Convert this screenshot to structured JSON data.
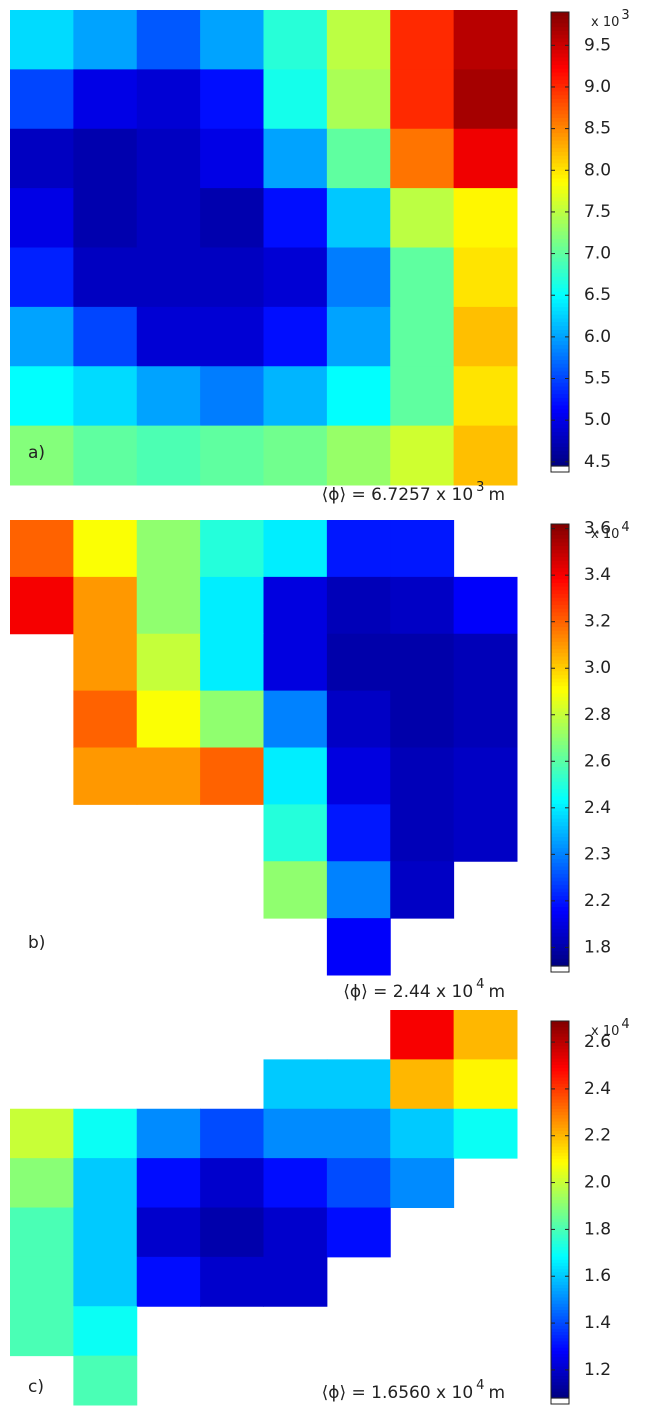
{
  "chart_data": [
    {
      "type": "heatmap",
      "colormap": "jet",
      "label": "a)",
      "z": [
        [
          6.3,
          6.0,
          5.6,
          6.0,
          6.7,
          7.5,
          9.0,
          9.6
        ],
        [
          5.5,
          5.0,
          4.9,
          5.2,
          6.6,
          7.4,
          9.0,
          9.7
        ],
        [
          4.8,
          4.7,
          4.8,
          5.0,
          6.0,
          7.0,
          8.6,
          9.3
        ],
        [
          5.0,
          4.7,
          4.8,
          4.7,
          5.2,
          6.2,
          7.5,
          7.9
        ],
        [
          5.3,
          4.8,
          4.8,
          4.8,
          4.9,
          5.8,
          7.0,
          8.0
        ],
        [
          6.0,
          5.5,
          4.9,
          4.9,
          5.2,
          6.0,
          7.0,
          8.2
        ],
        [
          6.5,
          6.3,
          6.0,
          5.8,
          6.1,
          6.5,
          7.0,
          8.0
        ],
        [
          7.2,
          7.0,
          6.9,
          7.0,
          7.1,
          7.3,
          7.6,
          8.2
        ]
      ],
      "zlim": [
        4.45,
        9.9
      ],
      "zticks": [
        4.5,
        {
          "value": 5,
          "label": "5.0"
        },
        5.5,
        {
          "value": 6,
          "label": "6.0"
        },
        6.5,
        {
          "value": 7,
          "label": "7.0"
        },
        7.5,
        {
          "value": 8,
          "label": "8.0"
        },
        8.5,
        {
          "value": 9,
          "label": "9.0"
        },
        9.5
      ],
      "colorbar_exponent": {
        "base": "x 10",
        "power": "3"
      },
      "annotation": {
        "text": "⟨ϕ⟩ = 6.7257 x 10",
        "power": "3",
        "unit": "m"
      }
    },
    {
      "type": "heatmap",
      "colormap": "jet",
      "label": "b)",
      "z": [
        [
          3.2,
          2.9,
          2.7,
          2.5,
          2.4,
          2.2,
          2.2,
          null
        ],
        [
          3.4,
          3.1,
          2.7,
          2.4,
          2.0,
          1.85,
          1.9,
          2.1
        ],
        [
          null,
          3.1,
          2.8,
          2.4,
          2.0,
          1.8,
          1.8,
          1.85
        ],
        [
          null,
          3.2,
          2.9,
          2.7,
          2.3,
          1.9,
          1.8,
          1.85
        ],
        [
          null,
          3.1,
          3.1,
          3.2,
          2.4,
          2.0,
          1.85,
          1.9
        ],
        [
          null,
          null,
          null,
          null,
          2.5,
          2.2,
          1.85,
          1.9
        ],
        [
          null,
          null,
          null,
          null,
          2.7,
          2.3,
          1.9,
          null
        ],
        [
          null,
          null,
          null,
          null,
          null,
          2.1,
          null,
          null
        ]
      ],
      "zlim": [
        1.64,
        3.62
      ],
      "zticks": [
        1.8,
        2.2,
        2.3,
        2.4,
        2.6,
        2.8,
        {
          "value": 3,
          "label": "3.0"
        },
        3.2,
        3.4,
        3.6
      ],
      "colorbar_exponent": {
        "base": "x 10",
        "power": "4"
      },
      "annotation": {
        "text": "⟨ϕ⟩ = 2.44 x 10",
        "power": "4",
        "unit": "m"
      }
    },
    {
      "type": "heatmap",
      "colormap": "jet",
      "label": "c)",
      "z": [
        [
          null,
          null,
          null,
          null,
          null,
          null,
          2.5,
          2.2
        ],
        [
          null,
          null,
          null,
          null,
          1.6,
          1.6,
          2.2,
          2.1
        ],
        [
          2.0,
          1.7,
          1.5,
          1.4,
          1.5,
          1.5,
          1.6,
          1.7
        ],
        [
          1.9,
          1.6,
          1.3,
          1.2,
          1.3,
          1.4,
          1.5,
          null
        ],
        [
          1.8,
          1.6,
          1.2,
          1.15,
          1.2,
          1.3,
          null,
          null
        ],
        [
          1.8,
          1.6,
          1.3,
          1.2,
          1.2,
          null,
          null,
          null
        ],
        [
          1.8,
          1.7,
          null,
          null,
          null,
          null,
          null,
          null
        ],
        [
          null,
          1.8,
          null,
          null,
          null,
          null,
          null,
          null
        ]
      ],
      "zlim": [
        1.08,
        2.69
      ],
      "zticks": [
        1.2,
        1.4,
        1.6,
        1.8,
        {
          "value": 2,
          "label": "2.0"
        },
        2.2,
        2.4,
        2.6
      ],
      "colorbar_exponent": {
        "base": "x 10",
        "power": "4"
      },
      "annotation": {
        "text": "⟨ϕ⟩ = 1.6560 x 10",
        "power": "4",
        "unit": "m"
      }
    }
  ]
}
